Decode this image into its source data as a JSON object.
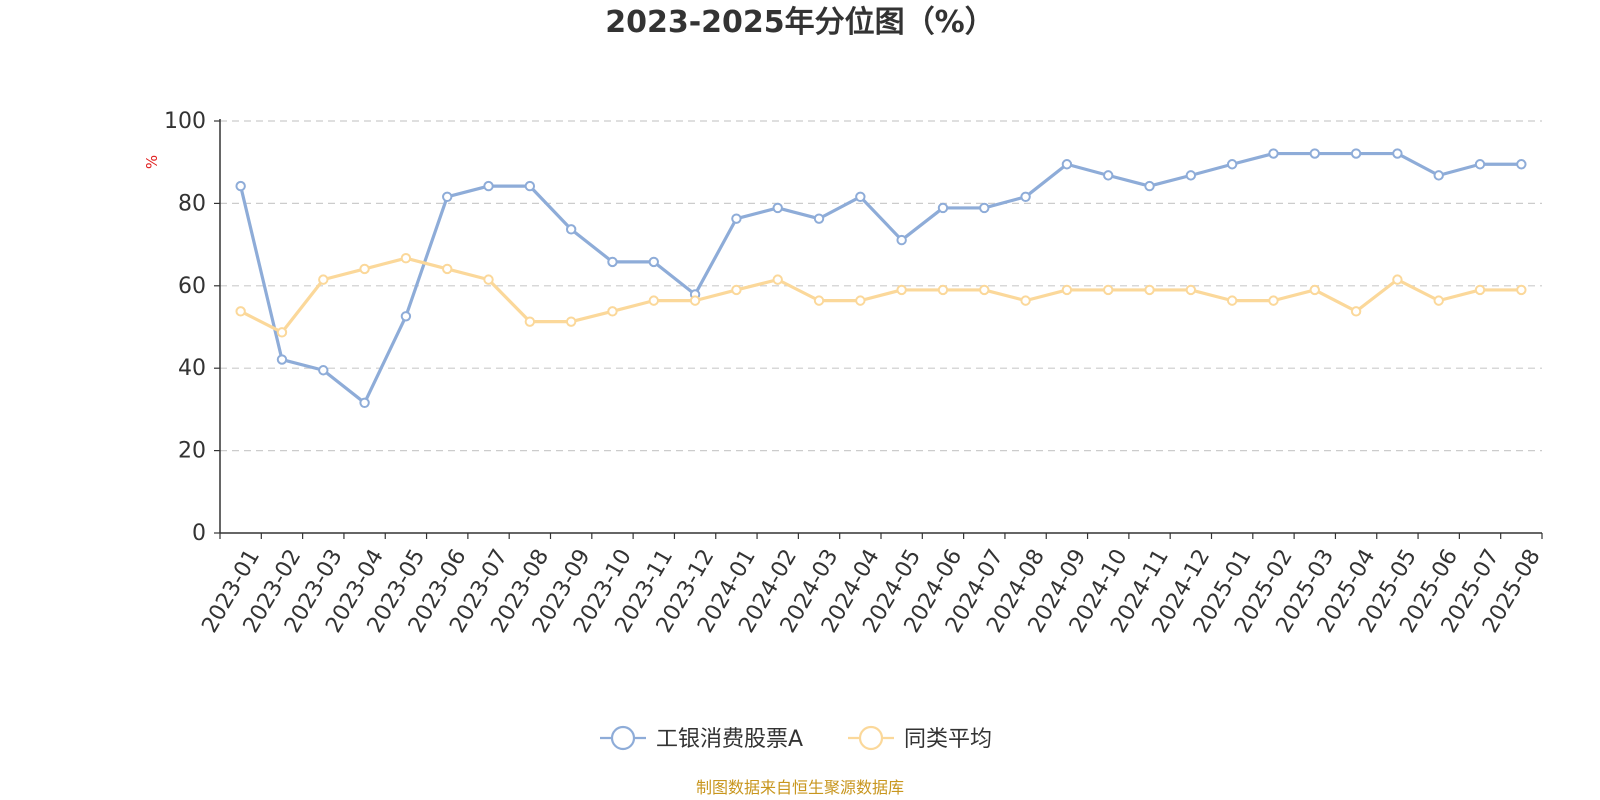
{
  "chart_data": {
    "type": "line",
    "title": "2023-2025年分位图（%）",
    "ylabel": "%",
    "ylim": [
      0,
      100
    ],
    "yticks": [
      0,
      20,
      40,
      60,
      80,
      100
    ],
    "grid": true,
    "legend_position": "bottom-center",
    "categories": [
      "2023-01",
      "2023-02",
      "2023-03",
      "2023-04",
      "2023-05",
      "2023-06",
      "2023-07",
      "2023-08",
      "2023-09",
      "2023-10",
      "2023-11",
      "2023-12",
      "2024-01",
      "2024-02",
      "2024-03",
      "2024-04",
      "2024-05",
      "2024-06",
      "2024-07",
      "2024-08",
      "2024-09",
      "2024-10",
      "2024-11",
      "2024-12",
      "2025-01",
      "2025-02",
      "2025-03",
      "2025-04",
      "2025-05",
      "2025-06",
      "2025-07",
      "2025-08"
    ],
    "series": [
      {
        "name": "工银消费股票A",
        "color": "#8eacd8",
        "values": [
          84.2,
          42.1,
          39.5,
          31.6,
          52.6,
          81.6,
          84.2,
          84.2,
          73.7,
          65.8,
          65.8,
          57.9,
          76.3,
          78.9,
          76.3,
          81.6,
          71.1,
          78.9,
          78.9,
          81.6,
          89.5,
          86.8,
          84.2,
          86.8,
          89.5,
          92.1,
          92.1,
          92.1,
          92.1,
          86.8,
          89.5,
          89.5
        ]
      },
      {
        "name": "同类平均",
        "color": "#fbd89a",
        "values": [
          53.8,
          48.7,
          61.5,
          64.1,
          66.7,
          64.1,
          61.5,
          51.3,
          51.3,
          53.8,
          56.4,
          56.4,
          59.0,
          61.5,
          56.4,
          56.4,
          59.0,
          59.0,
          59.0,
          56.4,
          59.0,
          59.0,
          59.0,
          59.0,
          56.4,
          56.4,
          59.0,
          53.8,
          61.5,
          56.4,
          59.0,
          59.0
        ]
      }
    ]
  },
  "source_note": "制图数据来自恒生聚源数据库",
  "colors": {
    "axis": "#333333",
    "grid": "#cccccc",
    "y_unit": "#e02020",
    "source": "#c8961e"
  }
}
